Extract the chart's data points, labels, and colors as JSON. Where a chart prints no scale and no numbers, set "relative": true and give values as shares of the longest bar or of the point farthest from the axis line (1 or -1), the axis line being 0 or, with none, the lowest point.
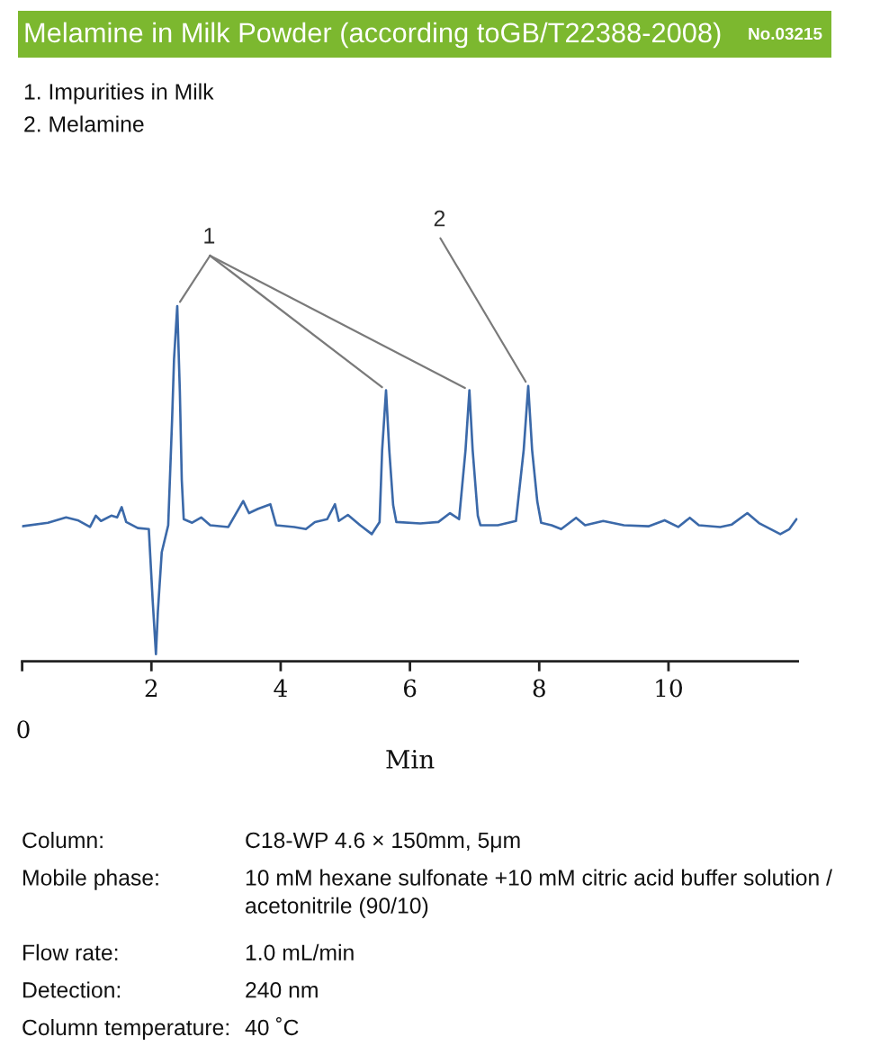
{
  "chart_data": {
    "type": "line",
    "title": "Melamine in Milk Powder (according toGB/T22388-2008)",
    "subtitle": "No.03215",
    "xlabel": "Min",
    "relative": true,
    "color": "#3b69a9",
    "xlim": [
      0,
      12
    ],
    "xticks": [
      {
        "value": 0,
        "label": null
      },
      2,
      4,
      6,
      8,
      10
    ],
    "x": [
      0.0,
      0.4,
      0.68,
      0.86,
      1.05,
      1.14,
      1.22,
      1.38,
      1.47,
      1.54,
      1.61,
      1.79,
      1.96,
      2.02,
      2.07,
      2.1,
      2.16,
      2.26,
      2.32,
      2.35,
      2.4,
      2.44,
      2.47,
      2.5,
      2.63,
      2.77,
      2.91,
      3.19,
      3.42,
      3.51,
      3.65,
      3.84,
      3.93,
      4.21,
      4.39,
      4.53,
      4.72,
      4.84,
      4.9,
      5.04,
      5.23,
      5.41,
      5.53,
      5.57,
      5.63,
      5.68,
      5.74,
      5.79,
      6.16,
      6.44,
      6.62,
      6.76,
      6.86,
      6.92,
      6.97,
      7.05,
      7.09,
      7.36,
      7.64,
      7.76,
      7.83,
      7.89,
      7.97,
      8.03,
      8.19,
      8.34,
      8.57,
      8.71,
      8.99,
      9.31,
      9.69,
      9.94,
      10.15,
      10.33,
      10.47,
      10.8,
      10.98,
      11.22,
      11.4,
      11.73,
      11.87,
      11.98
    ],
    "values": [
      0.38,
      0.39,
      0.405,
      0.397,
      0.378,
      0.41,
      0.395,
      0.41,
      0.405,
      0.434,
      0.392,
      0.375,
      0.372,
      0.17,
      0.02,
      0.14,
      0.307,
      0.383,
      0.68,
      0.85,
      1.0,
      0.76,
      0.51,
      0.4,
      0.39,
      0.405,
      0.383,
      0.378,
      0.451,
      0.417,
      0.429,
      0.442,
      0.383,
      0.378,
      0.372,
      0.392,
      0.4,
      0.442,
      0.395,
      0.412,
      0.383,
      0.358,
      0.392,
      0.595,
      0.763,
      0.595,
      0.44,
      0.392,
      0.388,
      0.392,
      0.417,
      0.4,
      0.595,
      0.763,
      0.595,
      0.41,
      0.383,
      0.383,
      0.395,
      0.595,
      0.775,
      0.595,
      0.45,
      0.39,
      0.383,
      0.372,
      0.404,
      0.383,
      0.395,
      0.383,
      0.38,
      0.397,
      0.378,
      0.404,
      0.383,
      0.378,
      0.385,
      0.417,
      0.389,
      0.358,
      0.372,
      0.4
    ],
    "annotations": [
      "1. Impurities in Milk",
      "2. Melamine",
      "0",
      "Column:",
      "C18-WP 4.6 × 150mm, 5μm",
      "Mobile phase:",
      "10 mM hexane sulfonate +10 mM citric acid buffer solution / acetonitrile (90/10)",
      "Flow rate:",
      "1.0 mL/min",
      "Detection:",
      "240 nm",
      "Column temperature:",
      "40 ˚C",
      {
        "text": "1",
        "x": 2.4,
        "y": 1.0
      },
      {
        "text": "2",
        "x": 7.83,
        "y": 0.775
      }
    ]
  }
}
